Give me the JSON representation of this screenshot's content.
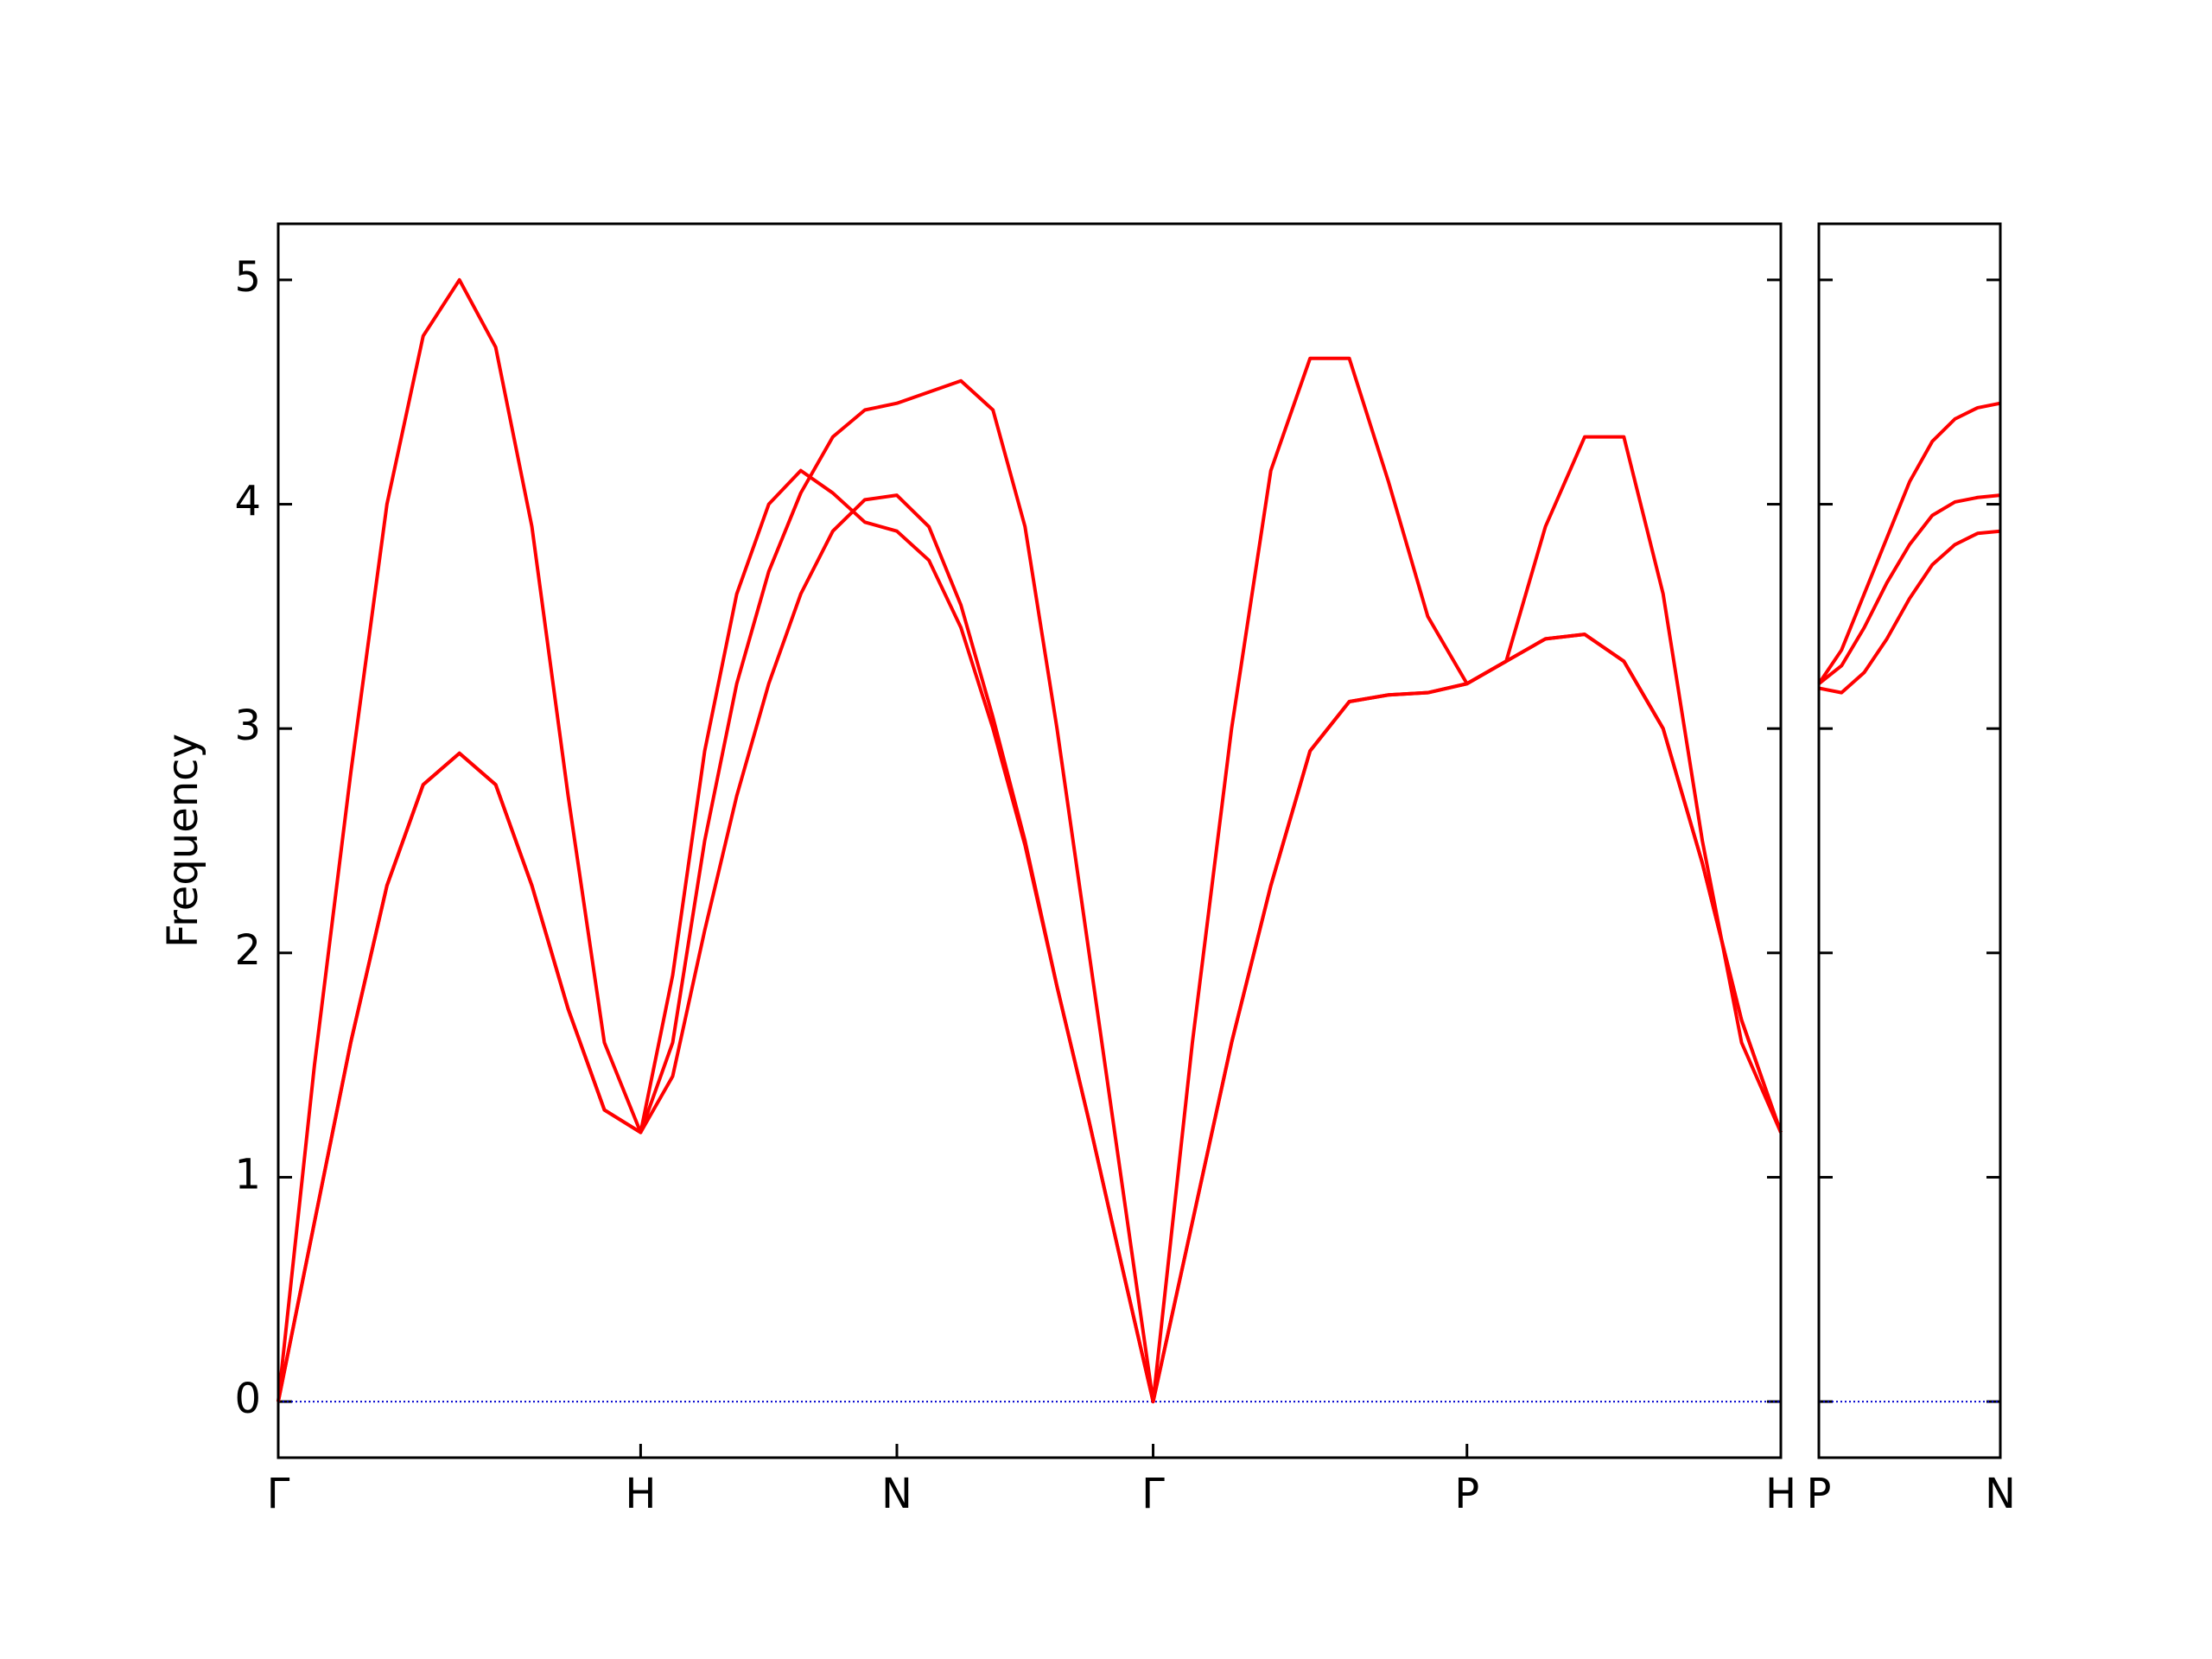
{
  "chart_data": [
    {
      "type": "line",
      "ylabel": "Frequency",
      "x": [
        0,
        0.1,
        0.2,
        0.3,
        0.4,
        0.5,
        0.6,
        0.7,
        0.8,
        0.9,
        1,
        1.0884,
        1.1768,
        1.2652,
        1.3536,
        1.4419,
        1.5303,
        1.6187,
        1.7071,
        1.7955,
        1.8839,
        1.9723,
        2.0607,
        2.149,
        2.2374,
        2.3258,
        2.4142,
        2.5225,
        2.6307,
        2.739,
        2.8472,
        2.9555,
        3.0637,
        3.172,
        3.2802,
        3.3885,
        3.4967,
        3.605,
        3.7132,
        3.8215,
        3.9297,
        4.038,
        4.1463
      ],
      "series": [
        {
          "color": "#ff0000",
          "values": [
            0,
            0.8,
            1.6,
            2.3,
            2.75,
            2.89,
            2.75,
            2.3,
            1.75,
            1.3,
            1.2,
            1.9,
            2.9,
            3.6,
            4.0,
            4.15,
            4.05,
            3.92,
            3.88,
            3.75,
            3.45,
            3.0,
            2.48,
            1.85,
            1.25,
            0.62,
            0,
            0.8,
            1.6,
            2.3,
            2.9,
            3.12,
            3.15,
            3.16,
            3.2,
            3.3,
            3.4,
            3.42,
            3.3,
            3.0,
            2.4,
            1.7,
            1.2
          ]
        },
        {
          "color": "#ff0000",
          "values": [
            0,
            0.8,
            1.6,
            2.3,
            2.75,
            2.89,
            2.75,
            2.3,
            1.75,
            1.3,
            1.2,
            1.45,
            2.1,
            2.7,
            3.2,
            3.6,
            3.88,
            4.02,
            4.04,
            3.9,
            3.55,
            3.05,
            2.5,
            1.85,
            1.25,
            0.62,
            0,
            0.8,
            1.6,
            2.3,
            2.9,
            3.12,
            3.15,
            3.16,
            3.2,
            3.3,
            3.4,
            3.42,
            3.3,
            3.0,
            2.4,
            1.7,
            1.2
          ]
        },
        {
          "color": "#ff0000",
          "values": [
            0,
            1.5,
            2.8,
            4.0,
            4.75,
            5.0,
            4.7,
            3.9,
            2.7,
            1.6,
            1.2,
            1.6,
            2.5,
            3.2,
            3.7,
            4.05,
            4.3,
            4.42,
            4.45,
            4.5,
            4.55,
            4.42,
            3.9,
            3.0,
            2.0,
            1.0,
            0,
            1.6,
            3.0,
            4.15,
            4.65,
            4.65,
            4.1,
            3.5,
            3.2,
            3.3,
            3.9,
            4.3,
            4.3,
            3.6,
            2.5,
            1.6,
            1.2
          ]
        }
      ],
      "xlim": [
        0,
        4.1463
      ],
      "xticks": [
        {
          "value": 0,
          "label": "Γ"
        },
        {
          "value": 1,
          "label": "H"
        },
        {
          "value": 1.7071,
          "label": "N"
        },
        {
          "value": 2.4142,
          "label": "Γ"
        },
        {
          "value": 3.2802,
          "label": "P"
        },
        {
          "value": 4.1463,
          "label": "H"
        }
      ],
      "ylim": [
        -0.25,
        5.25
      ],
      "yticks": [
        0,
        1,
        2,
        3,
        4,
        5
      ],
      "zero_line_color": "#0000cd"
    },
    {
      "type": "line",
      "x": [
        0,
        0.0625,
        0.125,
        0.1875,
        0.25,
        0.3125,
        0.375,
        0.4375,
        0.5
      ],
      "series": [
        {
          "color": "#ff0000",
          "values": [
            3.18,
            3.16,
            3.25,
            3.4,
            3.58,
            3.73,
            3.82,
            3.87,
            3.88
          ]
        },
        {
          "color": "#ff0000",
          "values": [
            3.2,
            3.28,
            3.45,
            3.65,
            3.82,
            3.95,
            4.01,
            4.03,
            4.04
          ]
        },
        {
          "color": "#ff0000",
          "values": [
            3.2,
            3.35,
            3.6,
            3.85,
            4.1,
            4.28,
            4.38,
            4.43,
            4.45
          ]
        }
      ],
      "xlim": [
        0,
        0.5
      ],
      "xticks": [
        {
          "value": 0,
          "label": "P"
        },
        {
          "value": 0.5,
          "label": "N"
        }
      ],
      "ylim": [
        -0.25,
        5.25
      ],
      "yticks": [
        0,
        1,
        2,
        3,
        4,
        5
      ],
      "zero_line_color": "#0000cd"
    }
  ]
}
